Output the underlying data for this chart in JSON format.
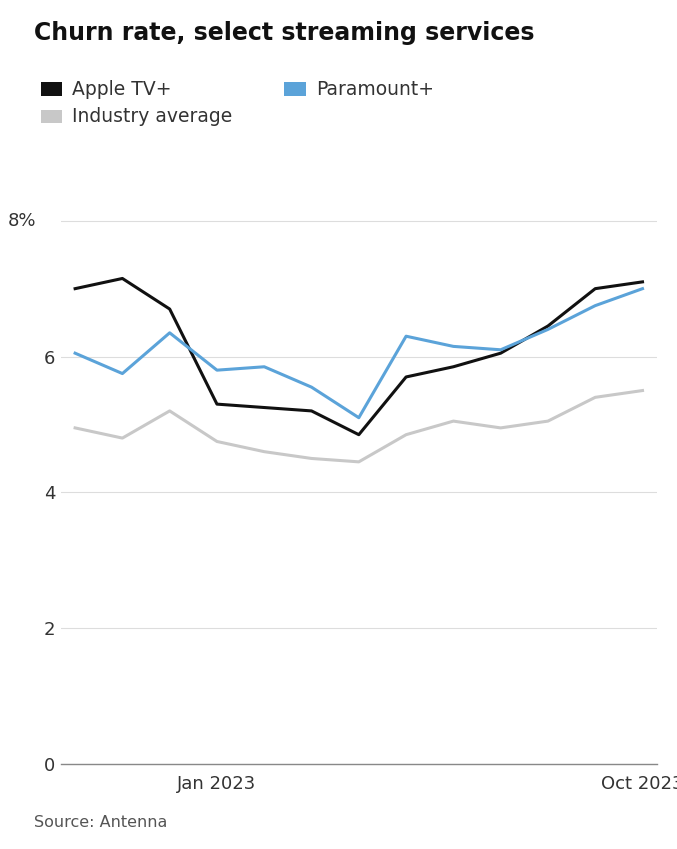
{
  "title": "Churn rate, select streaming services",
  "source": "Source: Antenna",
  "apple_tv": [
    7.0,
    7.15,
    6.7,
    5.3,
    5.25,
    5.2,
    4.85,
    5.7,
    5.85,
    6.05,
    6.45,
    7.0,
    7.1
  ],
  "paramount": [
    6.05,
    5.75,
    6.35,
    5.8,
    5.85,
    5.55,
    5.1,
    6.3,
    6.15,
    6.1,
    6.4,
    6.75,
    7.0
  ],
  "industry_avg": [
    4.95,
    4.8,
    5.2,
    4.75,
    4.6,
    4.5,
    4.45,
    4.85,
    5.05,
    4.95,
    5.05,
    5.4,
    5.5
  ],
  "apple_tv_color": "#111111",
  "paramount_color": "#5ba3d9",
  "industry_color": "#c8c8c8",
  "ylim": [
    0,
    8.5
  ],
  "yticks": [
    0,
    2,
    4,
    6,
    8
  ],
  "ytick_labels": [
    "0",
    "2",
    "4",
    "6",
    ""
  ],
  "line_width": 2.2,
  "background_color": "#ffffff",
  "grid_color": "#dddddd",
  "title_fontsize": 17,
  "label_fontsize": 13.5,
  "tick_fontsize": 13,
  "source_fontsize": 11.5
}
